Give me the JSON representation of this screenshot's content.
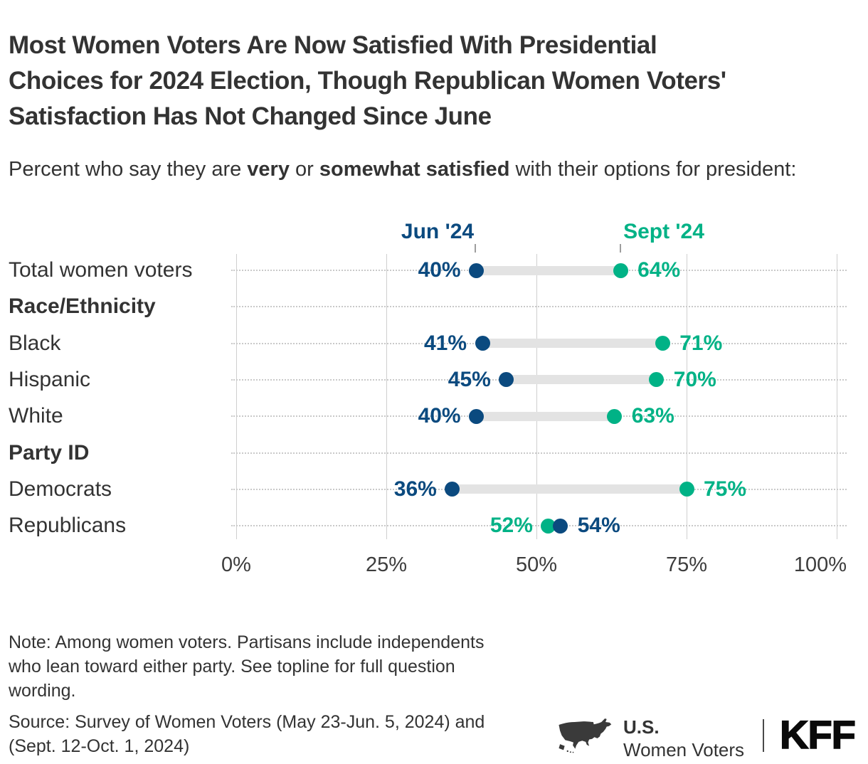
{
  "title": "Most Women Voters Are Now Satisfied With Presidential Choices for 2024 Election, Though Republican Women Voters' Satisfaction Has Not Changed Since June",
  "title_lines": [
    "Most Women Voters Are Now Satisfied With Presidential",
    "Choices for 2024 Election, Though Republican Women Voters'",
    "Satisfaction Has Not Changed Since June"
  ],
  "subtitle": {
    "full": "Percent who say they are very or somewhat satisfied with their options for president:",
    "segments": [
      {
        "text": "Percent who say they are "
      },
      {
        "text": "very",
        "bold": true
      },
      {
        "text": " or "
      },
      {
        "text": "somewhat satisfied",
        "bold": true
      },
      {
        "text": " with their options for president:"
      }
    ]
  },
  "legend": {
    "jun_label": "Jun '24",
    "sept_label": "Sept '24"
  },
  "chart_data": {
    "type": "dumbbell",
    "x_axis": {
      "tick_labels": [
        "0%",
        "25%",
        "50%",
        "75%",
        "100%"
      ],
      "tick_values": [
        0,
        25,
        50,
        75,
        100
      ],
      "range": [
        0,
        100
      ],
      "grid": true
    },
    "series": [
      {
        "name": "Jun '24",
        "color": "#0B4A7F"
      },
      {
        "name": "Sept '24",
        "color": "#00B286"
      }
    ],
    "rows": [
      {
        "label": "Total women voters",
        "type": "data",
        "jun": 40,
        "sept": 64
      },
      {
        "label": "Race/Ethnicity",
        "type": "header"
      },
      {
        "label": "Black",
        "type": "data",
        "jun": 41,
        "sept": 71
      },
      {
        "label": "Hispanic",
        "type": "data",
        "jun": 45,
        "sept": 70
      },
      {
        "label": "White",
        "type": "data",
        "jun": 40,
        "sept": 63
      },
      {
        "label": "Party ID",
        "type": "header"
      },
      {
        "label": "Democrats",
        "type": "data",
        "jun": 36,
        "sept": 75
      },
      {
        "label": "Republicans",
        "type": "data",
        "jun": 54,
        "sept": 52
      }
    ],
    "value_suffix": "%",
    "legend_position": "top"
  },
  "note_lines": [
    "Note: Among women voters. Partisans include independents",
    "who lean toward either party. See topline for full question",
    "wording."
  ],
  "source_lines": [
    "Source: Survey of Women Voters (May 23-Jun. 5, 2024) and",
    "(Sept. 12-Oct. 1, 2024)"
  ],
  "branding": {
    "program_line1": "U.S.",
    "program_line2": "Women Voters",
    "logo_text": "KFF"
  },
  "colors": {
    "jun": "#0B4A7F",
    "sept": "#00B286",
    "connector": "#E3E3E3",
    "grid_solid": "#CFCFCF",
    "grid_dotted": "#C9C9C9",
    "text": "#333333"
  }
}
